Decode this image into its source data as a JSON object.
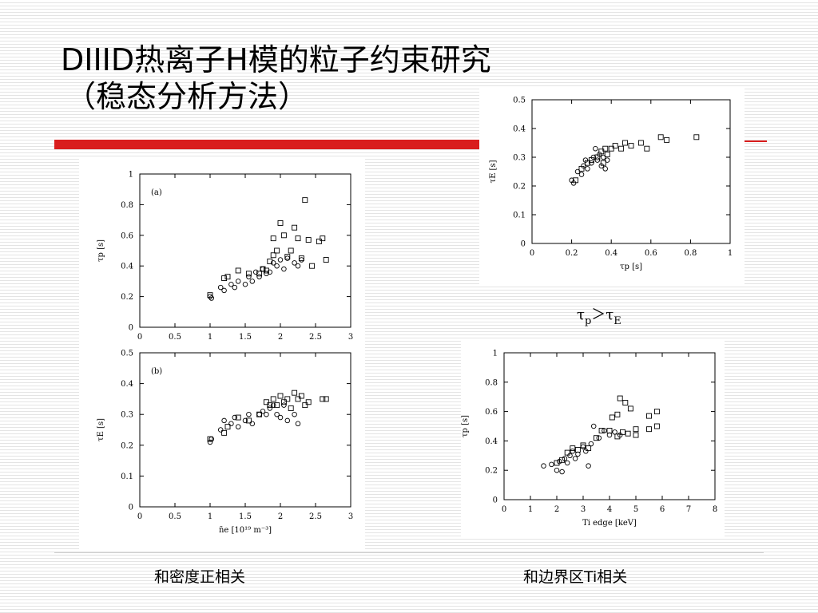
{
  "title": {
    "line1": "DIIID热离子H模的粒子约束研究",
    "line2": "（稳态分析方法）"
  },
  "relation": {
    "tau1": "τ",
    "sub1": "p",
    "gt": "＞",
    "tau2": "τ",
    "sub2": "E"
  },
  "captions": {
    "left": "和密度正相关",
    "right": "和边界区Ti相关"
  },
  "colors": {
    "red_bar": "#d91d1d"
  },
  "chart_data": [
    {
      "type": "scatter",
      "panel_label": "(a)",
      "xlabel": "",
      "ylabel": "τp [s]",
      "xlim": [
        0,
        3
      ],
      "ylim": [
        0,
        1
      ],
      "xticks": [
        "0",
        "0.5",
        "1",
        "1.5",
        "2",
        "2.5",
        "3"
      ],
      "yticks": [
        "0",
        "0.2",
        "0.4",
        "0.6",
        "0.8",
        "1"
      ],
      "series": [
        {
          "marker": "circle",
          "points": [
            [
              1.0,
              0.2
            ],
            [
              1.02,
              0.19
            ],
            [
              1.15,
              0.26
            ],
            [
              1.2,
              0.24
            ],
            [
              1.3,
              0.28
            ],
            [
              1.35,
              0.26
            ],
            [
              1.4,
              0.3
            ],
            [
              1.5,
              0.28
            ],
            [
              1.55,
              0.33
            ],
            [
              1.6,
              0.3
            ],
            [
              1.65,
              0.36
            ],
            [
              1.7,
              0.33
            ],
            [
              1.75,
              0.38
            ],
            [
              1.8,
              0.35
            ],
            [
              1.85,
              0.36
            ],
            [
              1.9,
              0.42
            ],
            [
              1.95,
              0.4
            ],
            [
              2.0,
              0.44
            ],
            [
              2.05,
              0.38
            ],
            [
              2.1,
              0.45
            ],
            [
              2.2,
              0.42
            ],
            [
              2.25,
              0.4
            ],
            [
              2.3,
              0.44
            ]
          ]
        },
        {
          "marker": "square",
          "points": [
            [
              1.0,
              0.21
            ],
            [
              1.2,
              0.32
            ],
            [
              1.25,
              0.33
            ],
            [
              1.4,
              0.37
            ],
            [
              1.55,
              0.35
            ],
            [
              1.7,
              0.35
            ],
            [
              1.75,
              0.38
            ],
            [
              1.8,
              0.37
            ],
            [
              1.85,
              0.43
            ],
            [
              1.9,
              0.47
            ],
            [
              1.95,
              0.5
            ],
            [
              1.9,
              0.58
            ],
            [
              2.0,
              0.68
            ],
            [
              2.05,
              0.6
            ],
            [
              2.1,
              0.46
            ],
            [
              2.15,
              0.5
            ],
            [
              2.2,
              0.65
            ],
            [
              2.25,
              0.58
            ],
            [
              2.3,
              0.45
            ],
            [
              2.35,
              0.83
            ],
            [
              2.4,
              0.57
            ],
            [
              2.45,
              0.4
            ],
            [
              2.6,
              0.58
            ],
            [
              2.65,
              0.44
            ],
            [
              2.55,
              0.56
            ]
          ]
        }
      ]
    },
    {
      "type": "scatter",
      "panel_label": "(b)",
      "xlabel": "n̄e [10¹⁹ m⁻³]",
      "ylabel": "τE [s]",
      "xlim": [
        0,
        3
      ],
      "ylim": [
        0,
        0.5
      ],
      "xticks": [
        "0",
        "0.5",
        "1",
        "1.5",
        "2",
        "2.5",
        "3"
      ],
      "yticks": [
        "0",
        "0.1",
        "0.2",
        "0.3",
        "0.4",
        "0.5"
      ],
      "series": [
        {
          "marker": "circle",
          "points": [
            [
              1.0,
              0.21
            ],
            [
              1.02,
              0.22
            ],
            [
              1.15,
              0.25
            ],
            [
              1.2,
              0.28
            ],
            [
              1.3,
              0.27
            ],
            [
              1.35,
              0.29
            ],
            [
              1.4,
              0.26
            ],
            [
              1.5,
              0.28
            ],
            [
              1.55,
              0.3
            ],
            [
              1.6,
              0.27
            ],
            [
              1.7,
              0.3
            ],
            [
              1.75,
              0.31
            ],
            [
              1.8,
              0.3
            ],
            [
              1.85,
              0.32
            ],
            [
              1.9,
              0.33
            ],
            [
              1.95,
              0.3
            ],
            [
              2.0,
              0.29
            ],
            [
              2.05,
              0.33
            ],
            [
              2.1,
              0.28
            ],
            [
              2.2,
              0.3
            ],
            [
              2.25,
              0.27
            ]
          ]
        },
        {
          "marker": "square",
          "points": [
            [
              1.0,
              0.22
            ],
            [
              1.2,
              0.24
            ],
            [
              1.25,
              0.26
            ],
            [
              1.4,
              0.29
            ],
            [
              1.55,
              0.28
            ],
            [
              1.7,
              0.3
            ],
            [
              1.8,
              0.34
            ],
            [
              1.85,
              0.33
            ],
            [
              1.9,
              0.35
            ],
            [
              1.95,
              0.33
            ],
            [
              2.0,
              0.36
            ],
            [
              2.05,
              0.34
            ],
            [
              2.1,
              0.35
            ],
            [
              2.15,
              0.32
            ],
            [
              2.2,
              0.37
            ],
            [
              2.25,
              0.35
            ],
            [
              2.3,
              0.36
            ],
            [
              2.35,
              0.33
            ],
            [
              2.4,
              0.34
            ],
            [
              2.6,
              0.35
            ],
            [
              2.65,
              0.35
            ]
          ]
        }
      ]
    },
    {
      "type": "scatter",
      "xlabel": "τp [s]",
      "ylabel": "τE [s]",
      "xlim": [
        0,
        1
      ],
      "ylim": [
        0,
        0.5
      ],
      "xticks": [
        "0",
        "0.2",
        "0.4",
        "0.6",
        "0.8",
        "1"
      ],
      "yticks": [
        "0",
        "0.1",
        "0.2",
        "0.3",
        "0.4",
        "0.5"
      ],
      "series": [
        {
          "marker": "circle",
          "points": [
            [
              0.2,
              0.22
            ],
            [
              0.21,
              0.21
            ],
            [
              0.23,
              0.25
            ],
            [
              0.25,
              0.24
            ],
            [
              0.26,
              0.27
            ],
            [
              0.27,
              0.29
            ],
            [
              0.28,
              0.26
            ],
            [
              0.3,
              0.28
            ],
            [
              0.31,
              0.3
            ],
            [
              0.32,
              0.33
            ],
            [
              0.33,
              0.29
            ],
            [
              0.34,
              0.31
            ],
            [
              0.35,
              0.27
            ],
            [
              0.36,
              0.3
            ],
            [
              0.37,
              0.26
            ],
            [
              0.38,
              0.29
            ]
          ]
        },
        {
          "marker": "square",
          "points": [
            [
              0.22,
              0.22
            ],
            [
              0.25,
              0.26
            ],
            [
              0.28,
              0.28
            ],
            [
              0.3,
              0.29
            ],
            [
              0.33,
              0.3
            ],
            [
              0.35,
              0.32
            ],
            [
              0.37,
              0.33
            ],
            [
              0.38,
              0.31
            ],
            [
              0.42,
              0.34
            ],
            [
              0.45,
              0.33
            ],
            [
              0.47,
              0.35
            ],
            [
              0.5,
              0.34
            ],
            [
              0.55,
              0.35
            ],
            [
              0.58,
              0.33
            ],
            [
              0.65,
              0.37
            ],
            [
              0.68,
              0.36
            ],
            [
              0.83,
              0.37
            ],
            [
              0.36,
              0.28
            ],
            [
              0.4,
              0.33
            ]
          ]
        }
      ]
    },
    {
      "type": "scatter",
      "xlabel": "Ti edge [keV]",
      "ylabel": "τp [s]",
      "xlim": [
        0,
        8
      ],
      "ylim": [
        0,
        1
      ],
      "xticks": [
        "0",
        "1",
        "2",
        "3",
        "4",
        "5",
        "6",
        "7",
        "8"
      ],
      "yticks": [
        "0",
        "0.2",
        "0.4",
        "0.6",
        "0.8",
        "1"
      ],
      "series": [
        {
          "marker": "circle",
          "points": [
            [
              1.5,
              0.23
            ],
            [
              1.8,
              0.24
            ],
            [
              2.0,
              0.2
            ],
            [
              2.1,
              0.26
            ],
            [
              2.2,
              0.19
            ],
            [
              2.3,
              0.28
            ],
            [
              2.4,
              0.25
            ],
            [
              2.5,
              0.3
            ],
            [
              2.6,
              0.33
            ],
            [
              2.7,
              0.28
            ],
            [
              2.8,
              0.31
            ],
            [
              3.0,
              0.36
            ],
            [
              3.1,
              0.33
            ],
            [
              3.2,
              0.23
            ],
            [
              3.3,
              0.38
            ],
            [
              3.4,
              0.5
            ],
            [
              3.6,
              0.42
            ],
            [
              3.8,
              0.47
            ],
            [
              4.0,
              0.44
            ],
            [
              4.2,
              0.46
            ],
            [
              4.4,
              0.44
            ]
          ]
        },
        {
          "marker": "square",
          "points": [
            [
              2.0,
              0.25
            ],
            [
              2.2,
              0.27
            ],
            [
              2.4,
              0.32
            ],
            [
              2.6,
              0.35
            ],
            [
              2.8,
              0.34
            ],
            [
              3.0,
              0.37
            ],
            [
              3.2,
              0.35
            ],
            [
              3.5,
              0.42
            ],
            [
              3.7,
              0.47
            ],
            [
              4.0,
              0.47
            ],
            [
              4.1,
              0.56
            ],
            [
              4.3,
              0.58
            ],
            [
              4.4,
              0.69
            ],
            [
              4.5,
              0.46
            ],
            [
              4.6,
              0.66
            ],
            [
              4.7,
              0.45
            ],
            [
              4.8,
              0.62
            ],
            [
              5.0,
              0.44
            ],
            [
              5.0,
              0.48
            ],
            [
              5.5,
              0.48
            ],
            [
              5.5,
              0.57
            ],
            [
              5.8,
              0.6
            ],
            [
              5.8,
              0.5
            ],
            [
              4.3,
              0.43
            ]
          ]
        }
      ]
    }
  ]
}
